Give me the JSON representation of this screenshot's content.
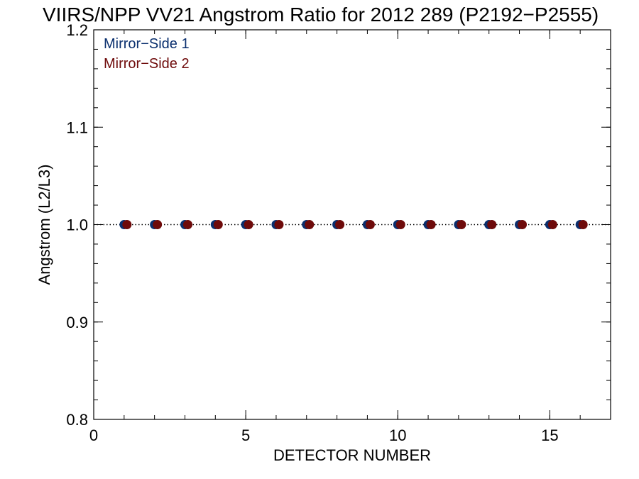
{
  "chart_data": {
    "type": "scatter",
    "title": "VIIRS/NPP VV21 Angstrom Ratio for 2012 289 (P2192−P2555)",
    "xlabel": "DETECTOR NUMBER",
    "ylabel": "Angstrom (L2/L3)",
    "xlim": [
      0,
      17
    ],
    "ylim": [
      0.8,
      1.2
    ],
    "x_ticks": [
      0,
      5,
      10,
      15
    ],
    "x_tick_labels": [
      "0",
      "5",
      "10",
      "15"
    ],
    "y_ticks": [
      0.8,
      0.9,
      1.0,
      1.1,
      1.2
    ],
    "y_tick_labels": [
      "0.8",
      "0.9",
      "1.0",
      "1.1",
      "1.2"
    ],
    "x_minor_step": 1,
    "y_minor_step": 0.02,
    "reference_line": {
      "y": 1.0,
      "style": "dotted"
    },
    "legend_position": "top-left",
    "series": [
      {
        "name": "Mirror−Side 1",
        "color": "#0a2f6e",
        "x": [
          1,
          2,
          3,
          4,
          5,
          6,
          7,
          8,
          9,
          10,
          11,
          12,
          13,
          14,
          15,
          16
        ],
        "y": [
          1.0,
          1.0,
          1.0,
          1.0,
          1.0,
          1.0,
          1.0,
          1.0,
          1.0,
          1.0,
          1.0,
          1.0,
          1.0,
          1.0,
          1.0,
          1.0
        ]
      },
      {
        "name": "Mirror−Side 2",
        "color": "#6e0a0a",
        "x": [
          1,
          2,
          3,
          4,
          5,
          6,
          7,
          8,
          9,
          10,
          11,
          12,
          13,
          14,
          15,
          16
        ],
        "y": [
          1.0,
          1.0,
          1.0,
          1.0,
          1.0,
          1.0,
          1.0,
          1.0,
          1.0,
          1.0,
          1.0,
          1.0,
          1.0,
          1.0,
          1.0,
          1.0
        ]
      }
    ]
  }
}
